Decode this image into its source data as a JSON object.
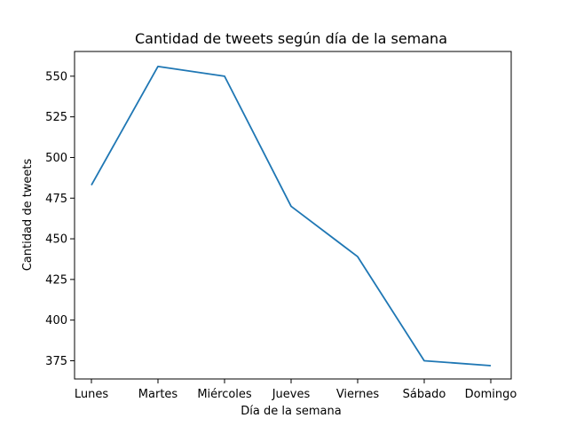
{
  "chart_data": {
    "type": "line",
    "title": "Cantidad de tweets según día de la semana",
    "xlabel": "Día de la semana",
    "ylabel": "Cantidad de tweets",
    "categories": [
      "Lunes",
      "Martes",
      "Miércoles",
      "Jueves",
      "Viernes",
      "Sábado",
      "Domingo"
    ],
    "series": [
      {
        "values": [
          483,
          556,
          550,
          470,
          439,
          375,
          372
        ]
      }
    ],
    "yticks": [
      375,
      400,
      425,
      450,
      475,
      500,
      525,
      550
    ],
    "ylim": [
      363.8,
      565.2
    ],
    "grid": false,
    "line_color": "#1f77b4"
  }
}
